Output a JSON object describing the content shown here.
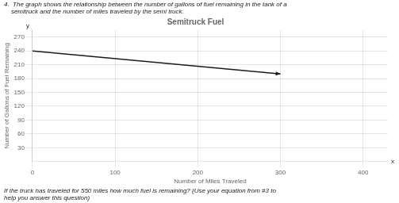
{
  "chart_data": {
    "type": "line",
    "title": "Semitruck Fuel",
    "subtitle": [
      "4.  The graph shows the relationship between the number of gallons of fuel remaining in the tank of a",
      "    semitruck and the number of miles traveled by the semi truck."
    ],
    "annotations": [
      {
        "text": "If the truck has traveled for 550 miles how much fuel is remaining? (Use your equation from #3 to"
      },
      {
        "text": "help you answer this question)"
      },
      {
        "text": "x",
        "axis": "x"
      },
      {
        "text": "y",
        "axis": "y"
      }
    ],
    "x_label": "Number of Miles Traveled",
    "y_label": "Number of Gallons of Fuel Remaining",
    "x": [
      0,
      300
    ],
    "values": [
      240,
      190
    ],
    "color": "#1a1a1a",
    "xlim": [
      0,
      430
    ],
    "xticks": [
      0,
      100,
      200,
      300,
      400
    ],
    "ylim": [
      0,
      285
    ],
    "yticks": [
      30,
      60,
      90,
      120,
      150,
      180,
      210,
      240,
      270
    ],
    "grid": true
  }
}
